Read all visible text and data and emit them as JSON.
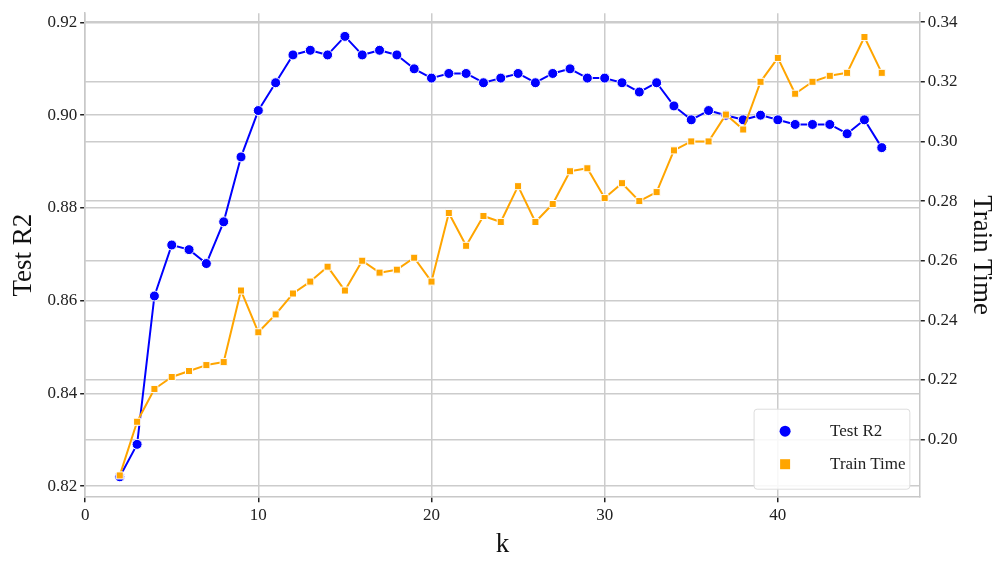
{
  "chart_data": {
    "type": "line",
    "xlabel": "k",
    "ylabel": "Test R2",
    "y2label": "Train Time",
    "x": [
      2,
      3,
      4,
      5,
      6,
      7,
      8,
      9,
      10,
      11,
      12,
      13,
      14,
      15,
      16,
      17,
      18,
      19,
      20,
      21,
      22,
      23,
      24,
      25,
      26,
      27,
      28,
      29,
      30,
      31,
      32,
      33,
      34,
      35,
      36,
      37,
      38,
      39,
      40,
      41,
      42,
      43,
      44,
      45,
      46
    ],
    "series": [
      {
        "name": "Test R2",
        "color": "#0000ff",
        "marker": "circle",
        "values": [
          0.822,
          0.829,
          0.861,
          0.872,
          0.871,
          0.868,
          0.877,
          0.891,
          0.901,
          0.907,
          0.913,
          0.914,
          0.913,
          0.917,
          0.913,
          0.914,
          0.913,
          0.91,
          0.908,
          0.909,
          0.909,
          0.907,
          0.908,
          0.909,
          0.907,
          0.909,
          0.91,
          0.908,
          0.908,
          0.907,
          0.905,
          0.907,
          0.902,
          0.899,
          0.901,
          0.9,
          0.899,
          0.9,
          0.899,
          0.898,
          0.898,
          0.898,
          0.896,
          0.899,
          0.893
        ]
      },
      {
        "name": "Train Time",
        "color": "#ffa500",
        "marker": "square",
        "axis": "y2",
        "values": [
          0.188,
          0.206,
          0.217,
          0.221,
          0.223,
          0.225,
          0.226,
          0.25,
          0.236,
          0.242,
          0.249,
          0.253,
          0.258,
          0.25,
          0.26,
          0.256,
          0.257,
          0.261,
          0.253,
          0.276,
          0.265,
          0.275,
          0.273,
          0.285,
          0.273,
          0.279,
          0.29,
          0.291,
          0.281,
          0.286,
          0.28,
          0.283,
          0.297,
          0.3,
          0.3,
          0.309,
          0.304,
          0.32,
          0.328,
          0.316,
          0.32,
          0.322,
          0.323,
          0.335,
          0.323
        ]
      }
    ],
    "xlim": [
      0,
      48.2
    ],
    "xticks": [
      0,
      10,
      20,
      30,
      40
    ],
    "ylim": [
      0.8176,
      0.922
    ],
    "yticks": [
      0.82,
      0.84,
      0.86,
      0.88,
      {
        "value": 0.9,
        "label": "0.90"
      },
      0.92
    ],
    "y2lim": [
      0.1807,
      0.343
    ],
    "y2ticks": [
      {
        "value": 0.2,
        "label": "0.20"
      },
      0.22,
      0.24,
      0.26,
      0.28,
      {
        "value": 0.3,
        "label": "0.30"
      },
      0.32,
      0.34
    ],
    "grid": true,
    "legend": "bottom right",
    "line_style": "solid"
  }
}
